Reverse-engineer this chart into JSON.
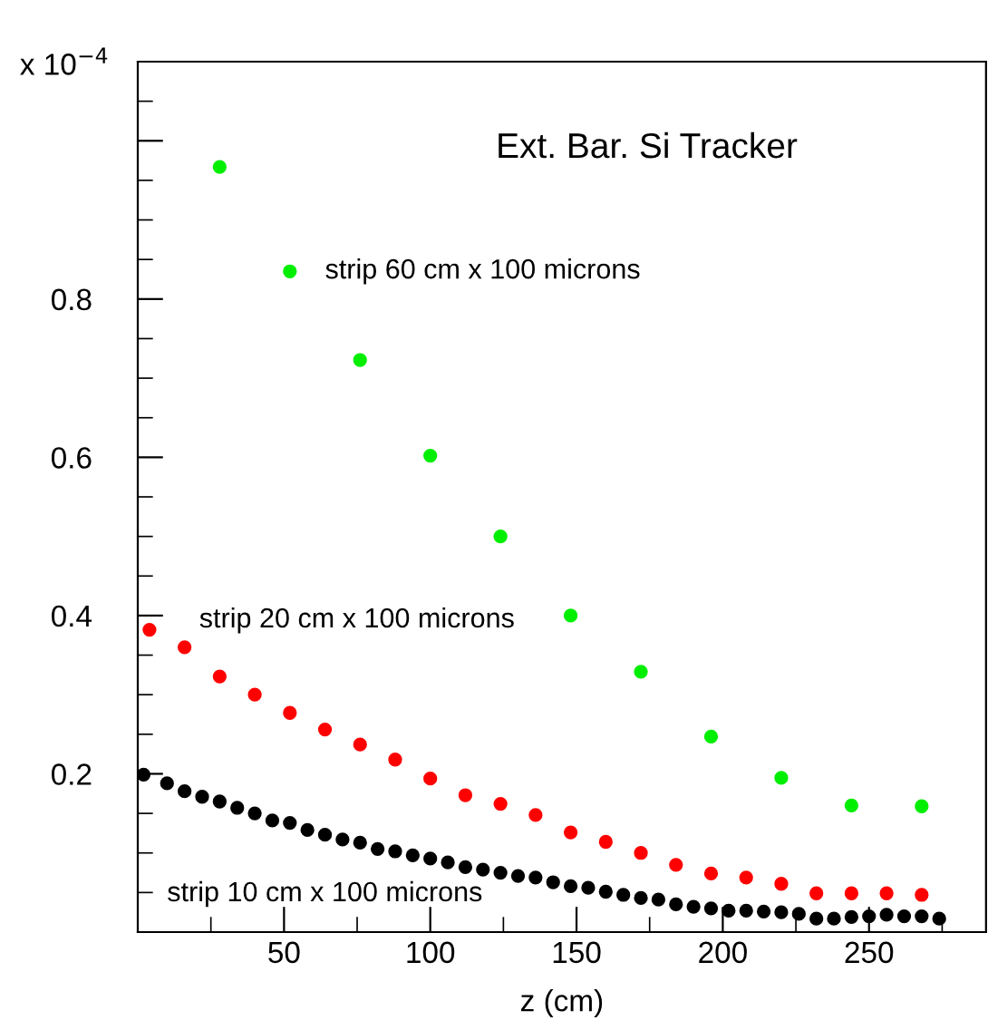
{
  "chart_data": {
    "type": "scatter",
    "xlabel": "z (cm)",
    "annotations": [
      "x 10$^{−4}$",
      "Ext. Bar. Si Tracker"
    ],
    "xlim": [
      0,
      290
    ],
    "ylim": [
      0,
      1.1
    ],
    "xticks": [
      50,
      100,
      150,
      200,
      250
    ],
    "yticks": [
      0.2,
      0.4,
      0.6,
      0.8,
      {
        "value": 1.0,
        "label": null
      }
    ],
    "marker": "circle",
    "grid": false,
    "series": [
      {
        "name": "strip 60 cm x 100 microns",
        "color": "#00ee00",
        "x": [
          28,
          52,
          76,
          100,
          124,
          148,
          172,
          196,
          220,
          244,
          268
        ],
        "values": [
          0.967,
          0.835,
          0.723,
          0.602,
          0.5,
          0.4,
          0.329,
          0.247,
          0.195,
          0.16,
          0.159
        ]
      },
      {
        "name": "strip 20 cm x 100 microns",
        "color": "#ff0000",
        "x": [
          4,
          16,
          28,
          40,
          52,
          64,
          76,
          88,
          100,
          112,
          124,
          136,
          148,
          160,
          172,
          184,
          196,
          208,
          220,
          232,
          244,
          256,
          268
        ],
        "values": [
          0.382,
          0.36,
          0.323,
          0.3,
          0.277,
          0.256,
          0.237,
          0.218,
          0.194,
          0.173,
          0.162,
          0.148,
          0.126,
          0.114,
          0.1,
          0.085,
          0.074,
          0.069,
          0.061,
          0.049,
          0.049,
          0.049,
          0.047
        ]
      },
      {
        "name": "strip 10 cm x 100 microns",
        "color": "#000000",
        "x": [
          2,
          10,
          16,
          22,
          28,
          34,
          40,
          46,
          52,
          58,
          64,
          70,
          76,
          82,
          88,
          94,
          100,
          106,
          112,
          118,
          124,
          130,
          136,
          142,
          148,
          154,
          160,
          166,
          172,
          178,
          184,
          190,
          196,
          202,
          208,
          214,
          220,
          226,
          232,
          238,
          244,
          250,
          256,
          262,
          268,
          274
        ],
        "values": [
          0.199,
          0.188,
          0.178,
          0.171,
          0.165,
          0.157,
          0.15,
          0.141,
          0.138,
          0.129,
          0.123,
          0.117,
          0.113,
          0.105,
          0.102,
          0.097,
          0.093,
          0.088,
          0.082,
          0.079,
          0.075,
          0.071,
          0.069,
          0.063,
          0.058,
          0.056,
          0.051,
          0.047,
          0.043,
          0.041,
          0.035,
          0.032,
          0.03,
          0.027,
          0.027,
          0.026,
          0.025,
          0.023,
          0.017,
          0.017,
          0.019,
          0.02,
          0.022,
          0.02,
          0.02,
          0.017
        ]
      }
    ]
  }
}
